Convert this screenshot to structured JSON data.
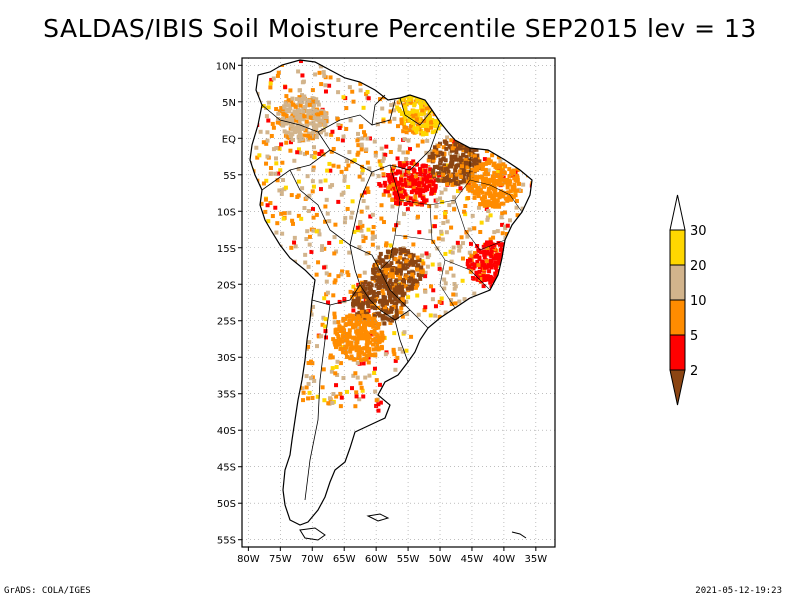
{
  "title": "SALDAS/IBIS Soil Moisture Percentile SEP2015 lev = 13",
  "footer": {
    "software": "GrADS: COLA/IGES",
    "timestamp": "2021-05-12-19:23"
  },
  "map": {
    "lon_range": [
      -81,
      -32
    ],
    "lat_range": [
      -56,
      11
    ],
    "lon_ticks": [
      {
        "value": -80,
        "label": "80W"
      },
      {
        "value": -75,
        "label": "75W"
      },
      {
        "value": -70,
        "label": "70W"
      },
      {
        "value": -65,
        "label": "65W"
      },
      {
        "value": -60,
        "label": "60W"
      },
      {
        "value": -55,
        "label": "55W"
      },
      {
        "value": -50,
        "label": "50W"
      },
      {
        "value": -45,
        "label": "45W"
      },
      {
        "value": -40,
        "label": "40W"
      },
      {
        "value": -35,
        "label": "35W"
      }
    ],
    "lat_ticks": [
      {
        "value": 10,
        "label": "10N"
      },
      {
        "value": 5,
        "label": "5N"
      },
      {
        "value": 0,
        "label": "EQ"
      },
      {
        "value": -5,
        "label": "5S"
      },
      {
        "value": -10,
        "label": "10S"
      },
      {
        "value": -15,
        "label": "15S"
      },
      {
        "value": -20,
        "label": "20S"
      },
      {
        "value": -25,
        "label": "25S"
      },
      {
        "value": -30,
        "label": "30S"
      },
      {
        "value": -35,
        "label": "35S"
      },
      {
        "value": -40,
        "label": "40S"
      },
      {
        "value": -45,
        "label": "45S"
      },
      {
        "value": -50,
        "label": "50S"
      },
      {
        "value": -55,
        "label": "55S"
      }
    ],
    "regions": [
      {
        "name": "central-amazon-red",
        "category": 1,
        "lon": -55,
        "lat": -6
      },
      {
        "name": "para-brown",
        "category": 0,
        "lon": -48,
        "lat": -3
      },
      {
        "name": "pantanal-brown",
        "category": 0,
        "lon": -57,
        "lat": -18
      },
      {
        "name": "french-guiana-yellow",
        "category": 4,
        "lon": -53,
        "lat": 4
      },
      {
        "name": "northeast-orange",
        "category": 2,
        "lon": -42,
        "lat": -6
      },
      {
        "name": "bahia-red",
        "category": 1,
        "lon": -42,
        "lat": -17
      },
      {
        "name": "paraguay-brown",
        "category": 0,
        "lon": -60,
        "lat": -22
      },
      {
        "name": "argentina-orange",
        "category": 2,
        "lon": -63,
        "lat": -27
      },
      {
        "name": "colombia-tan",
        "category": 3,
        "lon": -72,
        "lat": 3
      }
    ]
  },
  "legend": {
    "colors": [
      "#8b4513",
      "#ff0000",
      "#ff8c00",
      "#d2b48c",
      "#ffd700",
      "#ffffff"
    ],
    "labels": [
      "2",
      "5",
      "10",
      "20",
      "30"
    ]
  }
}
